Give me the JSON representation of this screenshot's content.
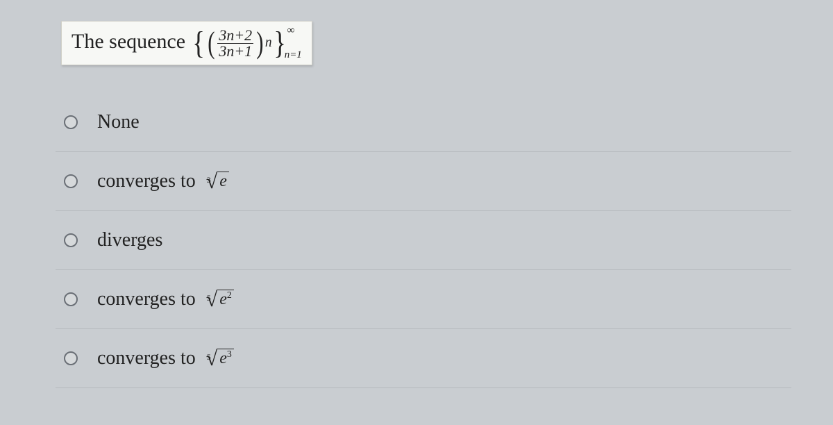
{
  "question": {
    "lead_text": "The sequence ",
    "fraction": {
      "num": "3n+2",
      "den": "3n+1"
    },
    "exponent": "n",
    "limit_top": "∞",
    "limit_bottom": "n=1"
  },
  "options": [
    {
      "text": "None",
      "has_math": false
    },
    {
      "text": "converges to ",
      "has_math": true,
      "root_index": "3",
      "radicand": "e",
      "exp": ""
    },
    {
      "text": "diverges",
      "has_math": false
    },
    {
      "text": "converges to ",
      "has_math": true,
      "root_index": "5",
      "radicand": "e",
      "exp": "2"
    },
    {
      "text": "converges to ",
      "has_math": true,
      "root_index": "5",
      "radicand": "e",
      "exp": "3"
    }
  ],
  "colors": {
    "page_bg": "#c9cdd1",
    "box_bg": "#f7f8f5",
    "text": "#222222",
    "divider": "#b5b9bd",
    "radio_border": "#6a6f76"
  }
}
